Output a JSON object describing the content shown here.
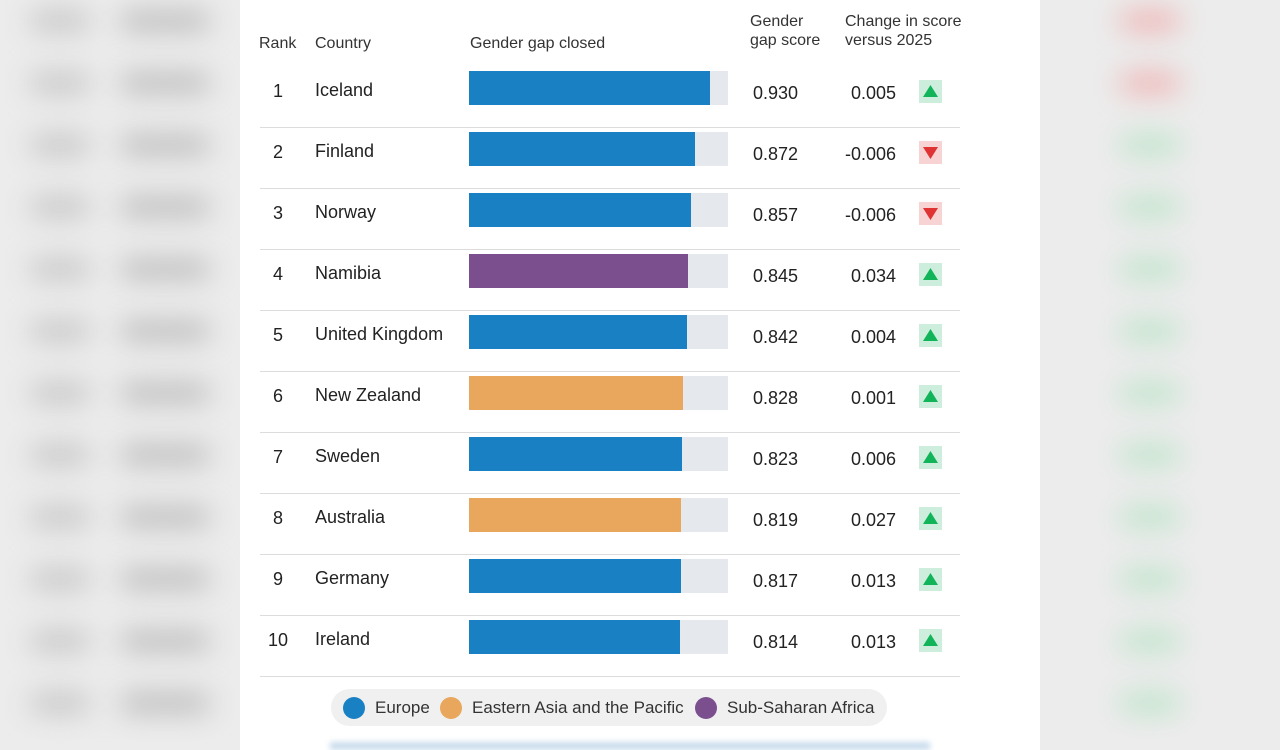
{
  "headers": {
    "rank": "Rank",
    "country": "Country",
    "bar": "Gender gap closed",
    "score": [
      "Gender",
      "gap score"
    ],
    "change": [
      "Change in score",
      "versus 2025"
    ]
  },
  "colors": {
    "Europe": "#1a80c4",
    "Eastern Asia and the Pacific": "#e8a75c",
    "Sub-Saharan Africa": "#7b4f8e",
    "track": "#e5e8ec",
    "up_bg": "#cdeedd",
    "up_fg": "#12b45a",
    "down_bg": "#f8d3d3",
    "down_fg": "#e03434"
  },
  "chart_data": {
    "type": "bar",
    "orientation": "horizontal",
    "xlim": [
      0,
      1
    ],
    "rows": [
      {
        "rank": "1",
        "country": "Iceland",
        "region": "Europe",
        "score": 0.93,
        "score_label": "0.930",
        "change": 0.005,
        "change_label": "0.005",
        "trend": "up"
      },
      {
        "rank": "2",
        "country": "Finland",
        "region": "Europe",
        "score": 0.872,
        "score_label": "0.872",
        "change": -0.006,
        "change_label": "-0.006",
        "trend": "down"
      },
      {
        "rank": "3",
        "country": "Norway",
        "region": "Europe",
        "score": 0.857,
        "score_label": "0.857",
        "change": -0.006,
        "change_label": "-0.006",
        "trend": "down"
      },
      {
        "rank": "4",
        "country": "Namibia",
        "region": "Sub-Saharan Africa",
        "score": 0.845,
        "score_label": "0.845",
        "change": 0.034,
        "change_label": "0.034",
        "trend": "up"
      },
      {
        "rank": "5",
        "country": "United Kingdom",
        "region": "Europe",
        "score": 0.842,
        "score_label": "0.842",
        "change": 0.004,
        "change_label": "0.004",
        "trend": "up"
      },
      {
        "rank": "6",
        "country": "New Zealand",
        "region": "Eastern Asia and the Pacific",
        "score": 0.828,
        "score_label": "0.828",
        "change": 0.001,
        "change_label": "0.001",
        "trend": "up"
      },
      {
        "rank": "7",
        "country": "Sweden",
        "region": "Europe",
        "score": 0.823,
        "score_label": "0.823",
        "change": 0.006,
        "change_label": "0.006",
        "trend": "up"
      },
      {
        "rank": "8",
        "country": "Australia",
        "region": "Eastern Asia and the Pacific",
        "score": 0.819,
        "score_label": "0.819",
        "change": 0.027,
        "change_label": "0.027",
        "trend": "up"
      },
      {
        "rank": "9",
        "country": "Germany",
        "region": "Europe",
        "score": 0.817,
        "score_label": "0.817",
        "change": 0.013,
        "change_label": "0.013",
        "trend": "up"
      },
      {
        "rank": "10",
        "country": "Ireland",
        "region": "Europe",
        "score": 0.814,
        "score_label": "0.814",
        "change": 0.013,
        "change_label": "0.013",
        "trend": "up"
      }
    ],
    "legend": [
      "Europe",
      "Eastern Asia and the Pacific",
      "Sub-Saharan Africa"
    ],
    "legend_position": "bottom"
  }
}
